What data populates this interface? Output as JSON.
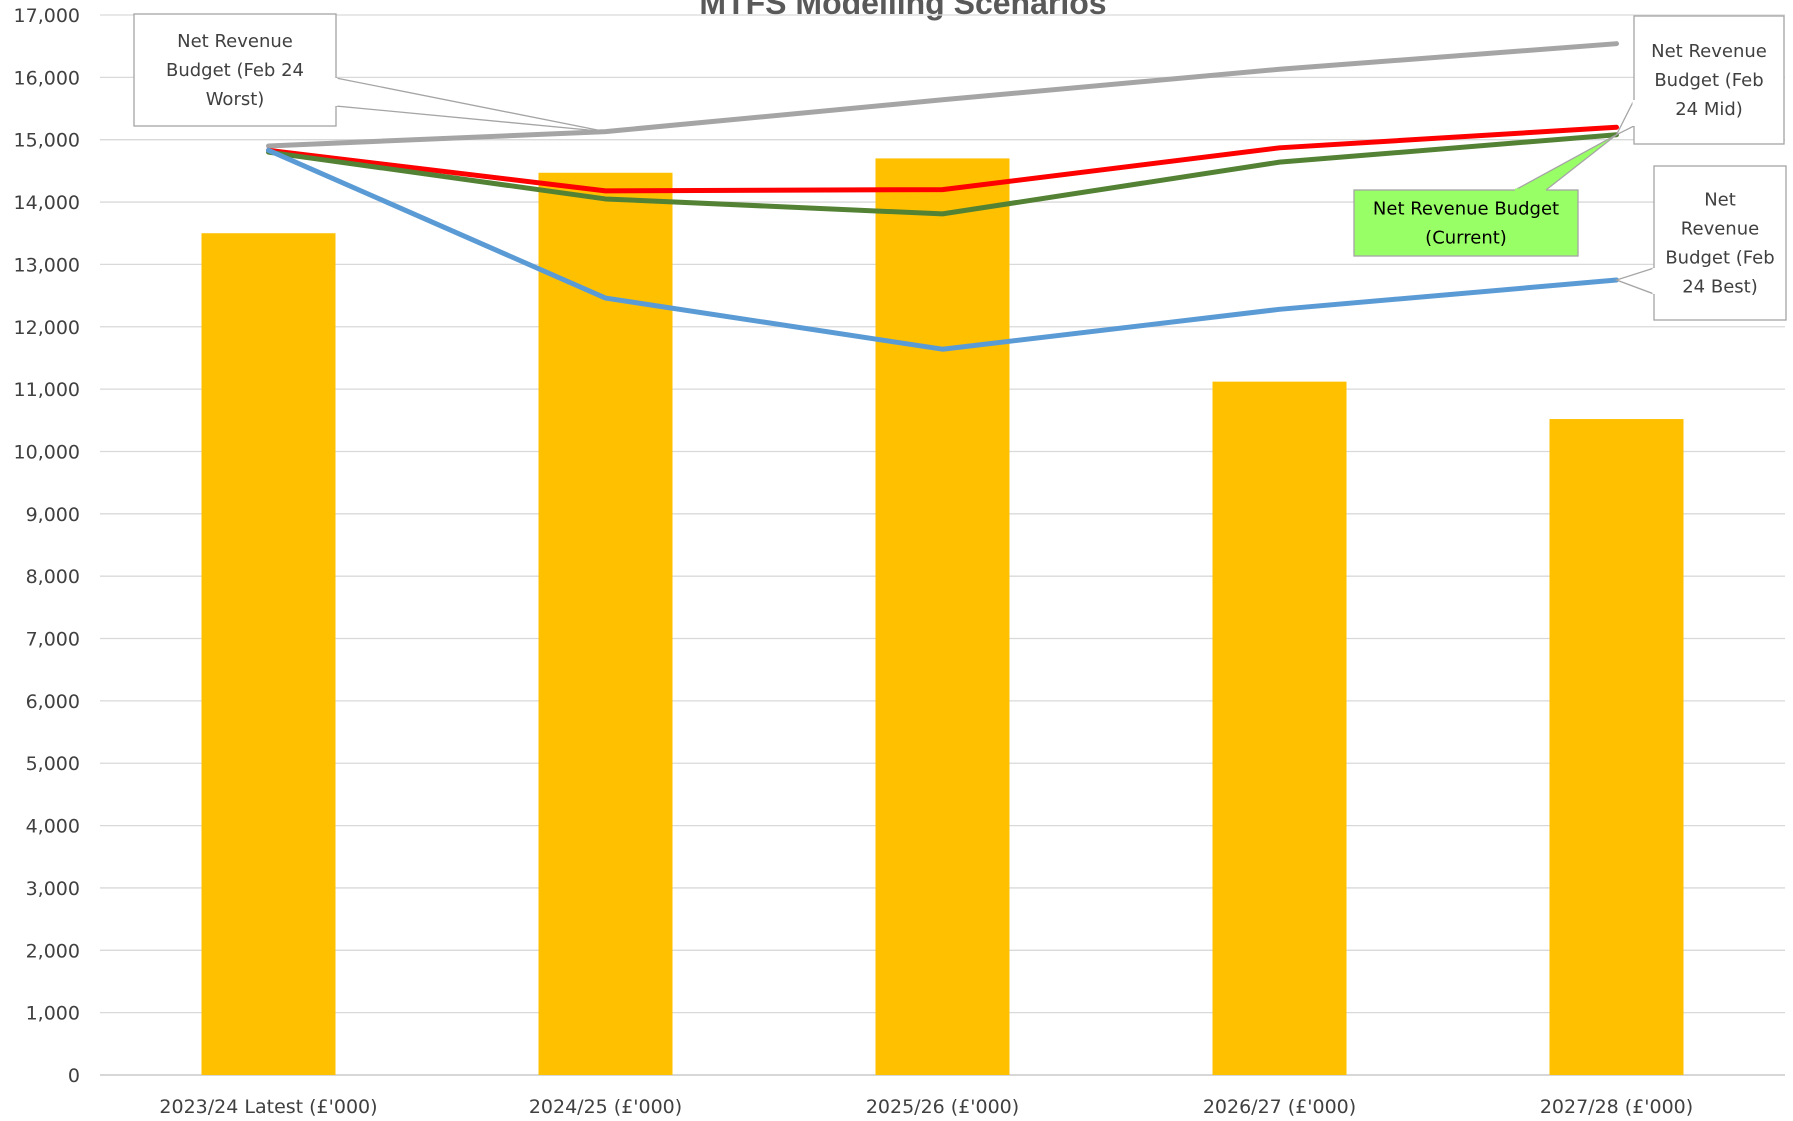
{
  "chart_data": {
    "type": "bar",
    "title": "MTFS Modelling Scenarios",
    "categories": [
      "2023/24 Latest (£'000)",
      "2024/25 (£'000)",
      "2025/26 (£'000)",
      "2026/27 (£'000)",
      "2027/28 (£'000)"
    ],
    "ylim": [
      0,
      17000
    ],
    "y_ticks": [
      "0",
      "1,000",
      "2,000",
      "3,000",
      "4,000",
      "5,000",
      "6,000",
      "7,000",
      "8,000",
      "9,000",
      "10,000",
      "11,000",
      "12,000",
      "13,000",
      "14,000",
      "15,000",
      "16,000",
      "17,000"
    ],
    "grid": true,
    "bar_values": [
      13500,
      14470,
      14700,
      11120,
      10520
    ],
    "bar_color": "#FFC000",
    "series": [
      {
        "key": "worst",
        "type": "line",
        "color": "#A5A5A5",
        "values": [
          14900,
          15130,
          15640,
          16130,
          16540
        ]
      },
      {
        "key": "current",
        "type": "line",
        "color": "#FF0000",
        "values": [
          14830,
          14180,
          14200,
          14870,
          15200
        ]
      },
      {
        "key": "mid",
        "type": "line",
        "color": "#548235",
        "values": [
          14800,
          14050,
          13810,
          14640,
          15080
        ]
      },
      {
        "key": "best",
        "type": "line",
        "color": "#5B9BD5",
        "values": [
          14830,
          12460,
          11640,
          12280,
          12750
        ]
      }
    ],
    "callouts": [
      {
        "key": "worst",
        "lines": [
          "Net Revenue",
          "Budget (Feb 24",
          "Worst)"
        ],
        "fill": "#FFFFFF",
        "stroke": "#A5A5A5"
      },
      {
        "key": "mid",
        "lines": [
          "Net Revenue",
          "Budget (Feb",
          "24 Mid)"
        ],
        "fill": "#FFFFFF",
        "stroke": "#A5A5A5"
      },
      {
        "key": "current",
        "lines": [
          "Net Revenue Budget",
          "(Current)"
        ],
        "fill": "#99FF66",
        "stroke": "#A5A5A5"
      },
      {
        "key": "best",
        "lines": [
          "Net",
          "Revenue",
          "Budget (Feb",
          "24 Best)"
        ],
        "fill": "#FFFFFF",
        "stroke": "#A5A5A5"
      }
    ]
  }
}
